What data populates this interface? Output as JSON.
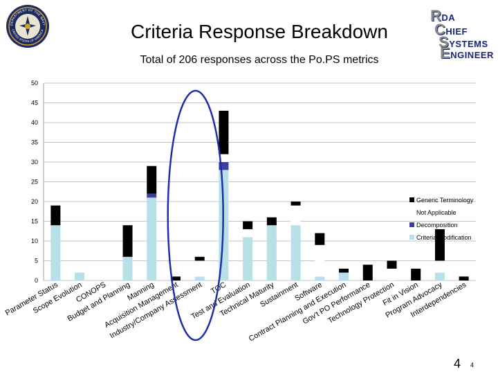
{
  "header": {
    "title": "Criteria Response Breakdown",
    "subtitle": "Total of 206 responses across the Po.PS metrics"
  },
  "logo": {
    "line1_initial": "R",
    "line1_text": "DA",
    "line2_initial": "C",
    "line2_text": "HIEF",
    "line3_initial": "S",
    "line3_text": "YSTEMS",
    "line4_initial": "E",
    "line4_text": "NGINEER"
  },
  "seal": {
    "name": "Department of the Navy seal",
    "top_text": "DEPARTMENT OF THE NAVY",
    "bottom_text": "UNITED STATES OF AMERICA"
  },
  "page": {
    "number": "4",
    "small_number": "4"
  },
  "colors": {
    "generic": "#000000",
    "not_applicable": "#ffffff",
    "decomposition": "#3f3f9f",
    "criteria_mod": "#b7e0e7",
    "highlight_ellipse": "#1c2fa8",
    "grid": "#b0b0b0"
  },
  "chart_data": {
    "type": "bar",
    "stacked": true,
    "ylim": [
      0,
      50
    ],
    "yticks": [
      0,
      5,
      10,
      15,
      20,
      25,
      30,
      35,
      40,
      45,
      50
    ],
    "categories": [
      "Parameter Status",
      "Scope Evolution",
      "CONOPS",
      "Budget and Planning",
      "Manning",
      "Acquisition Management",
      "Industry/Company Assessment",
      "TOC",
      "Test and Evaluation",
      "Technical Maturity",
      "Sustainment",
      "Software",
      "Contract Planning and Execution",
      "Gov't PO Performance",
      "Technology Protection",
      "Fit in Vision",
      "Program Advocacy",
      "Interdependencies"
    ],
    "series": [
      {
        "name": "Criteria Modification",
        "values": [
          14,
          2,
          0,
          6,
          21,
          0,
          1,
          28,
          11,
          14,
          14,
          1,
          2,
          0,
          0,
          0,
          2,
          0
        ]
      },
      {
        "name": "Decomposition",
        "values": [
          0,
          0,
          0,
          0,
          1,
          0,
          0,
          2,
          0,
          0,
          0,
          0,
          0,
          0,
          0,
          0,
          0,
          0
        ]
      },
      {
        "name": "Not Applicable",
        "values": [
          0,
          0,
          0,
          0,
          0,
          0,
          4,
          2,
          2,
          0,
          5,
          8,
          0,
          0,
          3,
          0,
          3,
          0
        ]
      },
      {
        "name": "Generic Terminology",
        "values": [
          5,
          0,
          0,
          8,
          7,
          1,
          1,
          11,
          2,
          2,
          1,
          3,
          1,
          4,
          2,
          3,
          8,
          1
        ]
      }
    ],
    "legend": [
      "Generic Terminology",
      "Not Applicable",
      "Decomposition",
      "Criteria Modification"
    ],
    "legend_position": "right",
    "highlighted_category": "Industry/Company Assessment"
  }
}
